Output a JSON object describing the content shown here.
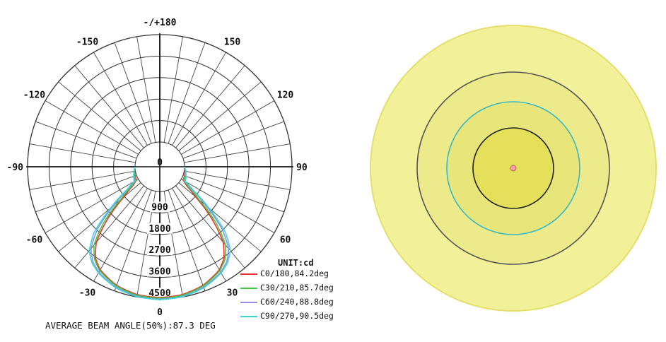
{
  "chart_data": [
    {
      "type": "polar",
      "title": "",
      "angle_labels": [
        {
          "deg": 180,
          "text": "-/+180"
        },
        {
          "deg": -150,
          "text": "-150"
        },
        {
          "deg": 150,
          "text": "150"
        },
        {
          "deg": -120,
          "text": "-120"
        },
        {
          "deg": 120,
          "text": "120"
        },
        {
          "deg": -90,
          "text": "-90"
        },
        {
          "deg": 90,
          "text": "90"
        },
        {
          "deg": -60,
          "text": "-60"
        },
        {
          "deg": 60,
          "text": "60"
        },
        {
          "deg": -30,
          "text": "-30"
        },
        {
          "deg": 30,
          "text": "30"
        },
        {
          "deg": 0,
          "text": "0"
        }
      ],
      "radial_ticks": [
        "0",
        "900",
        "1800",
        "2700",
        "3600",
        "4500"
      ],
      "radial_max": 4500,
      "unit_label": "UNIT:cd",
      "series": [
        {
          "name": "C0/180,84.2deg",
          "color": "#e8322e",
          "angles": [
            0,
            10,
            20,
            30,
            35,
            40,
            45,
            50,
            55,
            60,
            90
          ],
          "values": [
            4440,
            4400,
            4250,
            3950,
            3650,
            3100,
            2050,
            900,
            320,
            90,
            0
          ]
        },
        {
          "name": "C30/210,85.7deg",
          "color": "#3ec93e",
          "angles": [
            0,
            10,
            20,
            30,
            35,
            40,
            45,
            50,
            55,
            60,
            90
          ],
          "values": [
            4470,
            4430,
            4280,
            3990,
            3720,
            3250,
            2300,
            1100,
            420,
            120,
            0
          ]
        },
        {
          "name": "C60/240,88.8deg",
          "color": "#8f8fe6",
          "angles": [
            0,
            10,
            20,
            30,
            35,
            40,
            45,
            50,
            55,
            60,
            90
          ],
          "values": [
            4510,
            4470,
            4330,
            4060,
            3840,
            3450,
            2650,
            1450,
            560,
            170,
            0
          ]
        },
        {
          "name": "C90/270,90.5deg",
          "color": "#3fd3d8",
          "angles": [
            0,
            10,
            20,
            30,
            35,
            40,
            45,
            50,
            55,
            60,
            90
          ],
          "values": [
            4530,
            4490,
            4360,
            4100,
            3900,
            3560,
            2850,
            1650,
            660,
            200,
            0
          ]
        }
      ],
      "footer": "AVERAGE BEAM ANGLE(50%):87.3 DEG"
    },
    {
      "type": "illuminance-rings",
      "rings": [
        {
          "fill": "#f3f09a",
          "stroke": "#e3df6a"
        },
        {
          "fill": "#ecea8a",
          "stroke": "#555555"
        },
        {
          "fill": "#e8e57a",
          "stroke": "#39b8c4"
        },
        {
          "fill": "#e4e05a",
          "stroke": "#222222"
        }
      ],
      "center_marker": "#f0a0a0"
    }
  ]
}
